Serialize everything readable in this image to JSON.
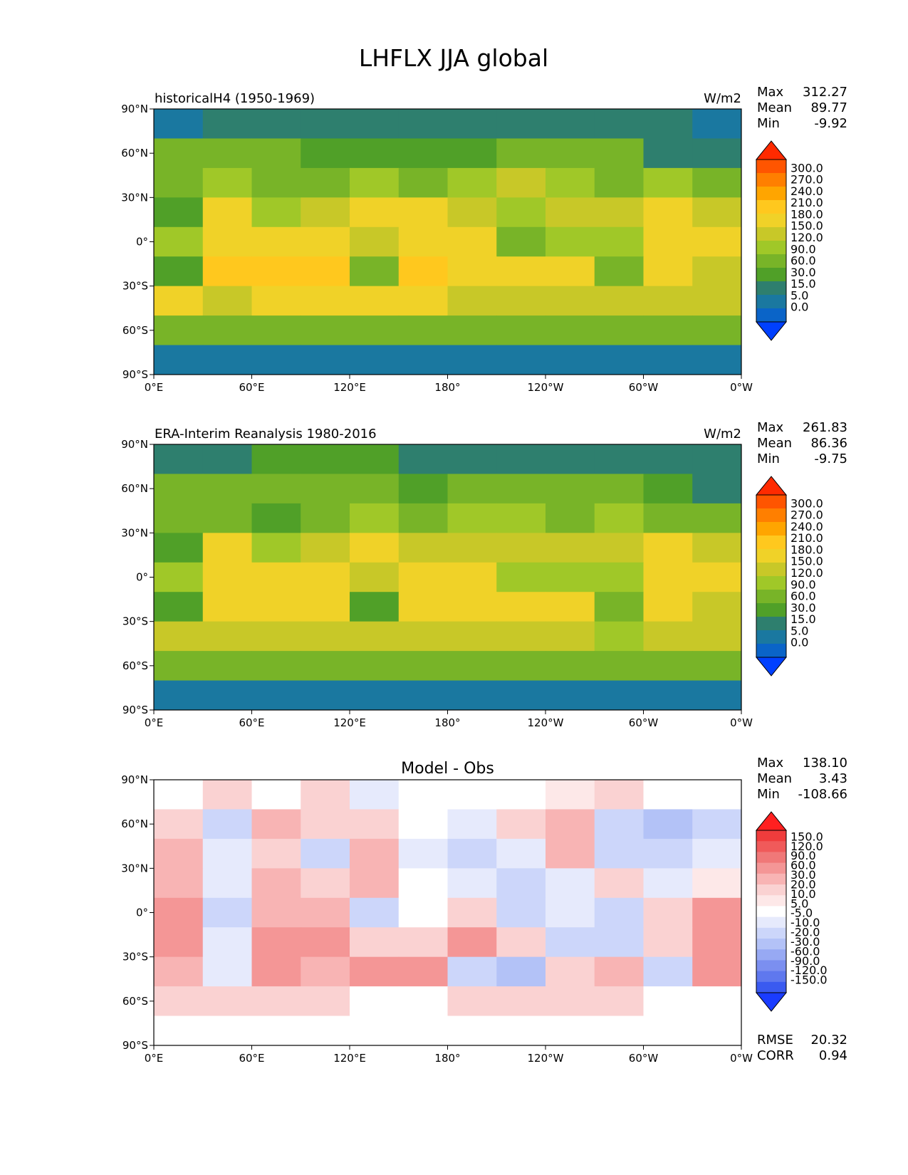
{
  "figure": {
    "title": "LHFLX JJA global"
  },
  "panels": [
    {
      "left_label": "historicalH4 (1950-1969)",
      "center_label": "",
      "units": "W/m2",
      "stats": [
        {
          "label": "Max",
          "value": "312.27"
        },
        {
          "label": "Mean",
          "value": "89.77"
        },
        {
          "label": "Min",
          "value": "-9.92"
        }
      ],
      "colorbar": "main",
      "field": "model"
    },
    {
      "left_label": "ERA-Interim Reanalysis 1980-2016",
      "center_label": "",
      "units": "W/m2",
      "stats": [
        {
          "label": "Max",
          "value": "261.83"
        },
        {
          "label": "Mean",
          "value": "86.36"
        },
        {
          "label": "Min",
          "value": "-9.75"
        }
      ],
      "colorbar": "main",
      "field": "obs"
    },
    {
      "left_label": "",
      "center_label": "Model - Obs",
      "units": "",
      "stats": [
        {
          "label": "Max",
          "value": "138.10"
        },
        {
          "label": "Mean",
          "value": "3.43"
        },
        {
          "label": "Min",
          "value": "-108.66"
        }
      ],
      "extra_stats": [
        {
          "label": "RMSE",
          "value": "20.32"
        },
        {
          "label": "CORR",
          "value": "0.94"
        }
      ],
      "colorbar": "diff",
      "field": "diff"
    }
  ],
  "axes": {
    "xticks": [
      "0°E",
      "60°E",
      "120°E",
      "180°",
      "120°W",
      "60°W",
      "0°W"
    ],
    "yticks": [
      "90°N",
      "60°N",
      "30°N",
      "0°",
      "30°S",
      "60°S",
      "90°S"
    ]
  },
  "colorbars": {
    "main": {
      "levels": [
        "300.0",
        "270.0",
        "240.0",
        "210.0",
        "180.0",
        "150.0",
        "120.0",
        "90.0",
        "60.0",
        "30.0",
        "15.0",
        "5.0",
        "0.0"
      ],
      "colors": [
        "#ff2a00",
        "#ff5500",
        "#ff7f00",
        "#ffa500",
        "#ffc81e",
        "#f0d228",
        "#c8c828",
        "#a0c828",
        "#78b428",
        "#50a028",
        "#2e7f6e",
        "#1a78a0",
        "#0a64c8",
        "#0040ff"
      ]
    },
    "diff": {
      "levels": [
        "150.0",
        "120.0",
        "90.0",
        "60.0",
        "30.0",
        "20.0",
        "10.0",
        "5.0",
        "-5.0",
        "-10.0",
        "-20.0",
        "-30.0",
        "-60.0",
        "-90.0",
        "-120.0",
        "-150.0"
      ],
      "colors": [
        "#ff2020",
        "#f03c3c",
        "#f05a5a",
        "#f07878",
        "#f49696",
        "#f8b4b4",
        "#fad2d2",
        "#fde8e8",
        "#ffffff",
        "#e6eafc",
        "#ccd6fa",
        "#b3c2f7",
        "#97a9f3",
        "#7b8ff0",
        "#5f78ee",
        "#3a5af0",
        "#1a3cff"
      ]
    }
  },
  "chart_data": [
    {
      "type": "heatmap",
      "title": "LHFLX JJA global",
      "subtitle": "historicalH4 (1950-1969)",
      "units": "W/m2",
      "x_ticks": [
        "0°E",
        "60°E",
        "120°E",
        "180°",
        "120°W",
        "60°W",
        "0°W"
      ],
      "y_ticks": [
        "90°N",
        "60°N",
        "30°N",
        "0°",
        "30°S",
        "60°S",
        "90°S"
      ],
      "xlim": [
        0,
        360
      ],
      "ylim": [
        -90,
        90
      ],
      "stats": {
        "max": 312.27,
        "mean": 89.77,
        "min": -9.92
      },
      "colorbar_levels": [
        0,
        5,
        15,
        30,
        60,
        90,
        120,
        150,
        180,
        210,
        240,
        270,
        300
      ],
      "lon": [
        0,
        30,
        60,
        90,
        120,
        150,
        180,
        210,
        240,
        270,
        300,
        330
      ],
      "lat": [
        80,
        60,
        40,
        20,
        0,
        -20,
        -40,
        -60,
        -80
      ],
      "values": [
        [
          5,
          15,
          15,
          15,
          15,
          15,
          15,
          15,
          15,
          15,
          15,
          5
        ],
        [
          60,
          60,
          60,
          45,
          40,
          30,
          40,
          60,
          60,
          60,
          20,
          15
        ],
        [
          60,
          90,
          60,
          60,
          90,
          60,
          90,
          120,
          90,
          80,
          90,
          60
        ],
        [
          30,
          150,
          90,
          120,
          150,
          150,
          120,
          90,
          120,
          120,
          150,
          120
        ],
        [
          90,
          150,
          150,
          150,
          120,
          150,
          150,
          60,
          90,
          90,
          150,
          150
        ],
        [
          30,
          180,
          180,
          180,
          60,
          180,
          150,
          150,
          150,
          60,
          150,
          120
        ],
        [
          150,
          120,
          150,
          150,
          150,
          150,
          120,
          120,
          120,
          120,
          120,
          120
        ],
        [
          60,
          60,
          60,
          60,
          60,
          60,
          60,
          60,
          60,
          60,
          60,
          60
        ],
        [
          5,
          5,
          5,
          5,
          5,
          5,
          5,
          5,
          5,
          5,
          5,
          5
        ]
      ]
    },
    {
      "type": "heatmap",
      "subtitle": "ERA-Interim Reanalysis 1980-2016",
      "units": "W/m2",
      "x_ticks": [
        "0°E",
        "60°E",
        "120°E",
        "180°",
        "120°W",
        "60°W",
        "0°W"
      ],
      "y_ticks": [
        "90°N",
        "60°N",
        "30°N",
        "0°",
        "30°S",
        "60°S",
        "90°S"
      ],
      "xlim": [
        0,
        360
      ],
      "ylim": [
        -90,
        90
      ],
      "stats": {
        "max": 261.83,
        "mean": 86.36,
        "min": -9.75
      },
      "colorbar_levels": [
        0,
        5,
        15,
        30,
        60,
        90,
        120,
        150,
        180,
        210,
        240,
        270,
        300
      ],
      "lon": [
        0,
        30,
        60,
        90,
        120,
        150,
        180,
        210,
        240,
        270,
        300,
        330
      ],
      "lat": [
        80,
        60,
        40,
        20,
        0,
        -20,
        -40,
        -60,
        -80
      ],
      "values": [
        [
          15,
          15,
          30,
          30,
          30,
          15,
          15,
          15,
          15,
          15,
          15,
          15
        ],
        [
          60,
          60,
          60,
          60,
          60,
          30,
          60,
          60,
          60,
          60,
          30,
          15
        ],
        [
          60,
          60,
          30,
          60,
          90,
          60,
          90,
          90,
          60,
          90,
          60,
          60
        ],
        [
          30,
          150,
          90,
          120,
          150,
          120,
          120,
          120,
          120,
          120,
          150,
          120
        ],
        [
          90,
          150,
          150,
          150,
          120,
          150,
          150,
          90,
          90,
          90,
          150,
          150
        ],
        [
          30,
          150,
          150,
          150,
          30,
          150,
          150,
          150,
          150,
          60,
          150,
          120
        ],
        [
          120,
          120,
          120,
          120,
          120,
          120,
          120,
          120,
          120,
          90,
          120,
          120
        ],
        [
          60,
          60,
          60,
          60,
          60,
          60,
          60,
          60,
          60,
          60,
          60,
          60
        ],
        [
          5,
          5,
          5,
          5,
          5,
          5,
          5,
          5,
          5,
          5,
          5,
          5
        ]
      ]
    },
    {
      "type": "heatmap",
      "title": "Model - Obs",
      "x_ticks": [
        "0°E",
        "60°E",
        "120°E",
        "180°",
        "120°W",
        "60°W",
        "0°W"
      ],
      "y_ticks": [
        "90°N",
        "60°N",
        "30°N",
        "0°",
        "30°S",
        "60°S",
        "90°S"
      ],
      "xlim": [
        0,
        360
      ],
      "ylim": [
        -90,
        90
      ],
      "stats": {
        "max": 138.1,
        "mean": 3.43,
        "min": -108.66,
        "rmse": 20.32,
        "corr": 0.94
      },
      "colorbar_levels": [
        -150,
        -120,
        -90,
        -60,
        -30,
        -20,
        -10,
        -5,
        5,
        10,
        20,
        30,
        60,
        90,
        120,
        150
      ],
      "lon": [
        0,
        30,
        60,
        90,
        120,
        150,
        180,
        210,
        240,
        270,
        300,
        330
      ],
      "lat": [
        80,
        60,
        40,
        20,
        0,
        -20,
        -40,
        -60,
        -80
      ],
      "values": [
        [
          0,
          10,
          0,
          10,
          -10,
          0,
          0,
          0,
          5,
          10,
          0,
          0
        ],
        [
          10,
          -20,
          20,
          10,
          10,
          0,
          -10,
          10,
          20,
          -20,
          -30,
          -20
        ],
        [
          20,
          -10,
          10,
          -20,
          20,
          -10,
          -20,
          -10,
          20,
          -20,
          -20,
          -10
        ],
        [
          20,
          -10,
          20,
          10,
          20,
          0,
          -10,
          -20,
          -10,
          10,
          -10,
          5
        ],
        [
          30,
          -20,
          20,
          20,
          -20,
          0,
          10,
          -20,
          -10,
          -20,
          10,
          30
        ],
        [
          30,
          -10,
          30,
          30,
          10,
          10,
          30,
          10,
          -20,
          -20,
          10,
          30
        ],
        [
          20,
          -10,
          30,
          20,
          30,
          30,
          -20,
          -30,
          10,
          20,
          -20,
          30
        ],
        [
          10,
          10,
          10,
          10,
          0,
          0,
          10,
          10,
          10,
          10,
          0,
          0
        ],
        [
          0,
          0,
          0,
          0,
          0,
          0,
          0,
          0,
          0,
          0,
          0,
          0
        ]
      ]
    }
  ]
}
